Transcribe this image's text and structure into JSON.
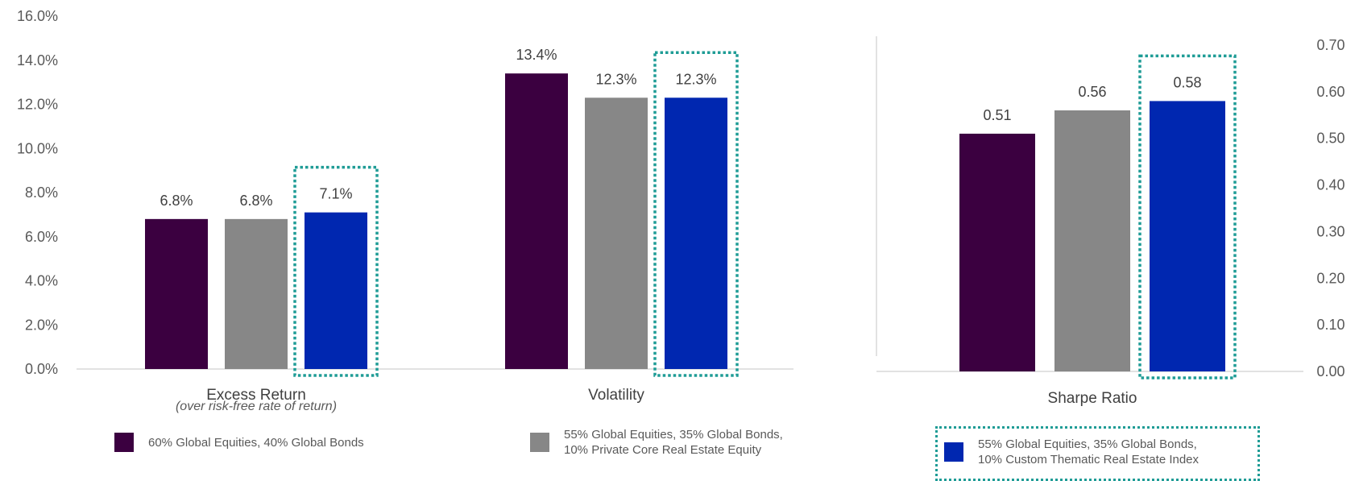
{
  "colors": {
    "series_1": "#3b0040",
    "series_2": "#878787",
    "series_3": "#0027b0",
    "highlight": "#1f9c96",
    "axis": "#d9d9d9",
    "text": "#404040"
  },
  "chart_data": [
    {
      "type": "bar",
      "title": "",
      "categories": [
        "Excess Return",
        "Volatility"
      ],
      "category_notes": [
        "(over risk-free rate of return)",
        ""
      ],
      "series": [
        {
          "name": "60% Global Equities, 40% Global Bonds",
          "values": [
            6.8,
            13.4
          ]
        },
        {
          "name": "55% Global Equities, 35% Global Bonds, 10% Private Core Real Estate Equity",
          "values": [
            6.8,
            12.3
          ]
        },
        {
          "name": "55% Global Equities, 35% Global Bonds, 10% Custom Thematic Real Estate Index",
          "values": [
            7.1,
            12.3
          ]
        }
      ],
      "data_labels": [
        [
          "6.8%",
          "13.4%"
        ],
        [
          "6.8%",
          "12.3%"
        ],
        [
          "7.1%",
          "12.3%"
        ]
      ],
      "ylim": [
        0,
        16
      ],
      "yticks": [
        "0.0%",
        "2.0%",
        "4.0%",
        "6.0%",
        "8.0%",
        "10.0%",
        "12.0%",
        "14.0%",
        "16.0%"
      ],
      "y_axis_side": "left",
      "highlighted_series": 2,
      "grid": false
    },
    {
      "type": "bar",
      "title": "",
      "categories": [
        "Sharpe Ratio"
      ],
      "series": [
        {
          "name": "60% Global Equities, 40% Global Bonds",
          "values": [
            0.51
          ]
        },
        {
          "name": "55% Global Equities, 35% Global Bonds, 10% Private Core Real Estate Equity",
          "values": [
            0.56
          ]
        },
        {
          "name": "55% Global Equities, 35% Global Bonds, 10% Custom Thematic Real Estate Index",
          "values": [
            0.58
          ]
        }
      ],
      "data_labels": [
        [
          "0.51"
        ],
        [
          "0.56"
        ],
        [
          "0.58"
        ]
      ],
      "ylim": [
        0,
        0.7
      ],
      "yticks": [
        "0.00",
        "0.10",
        "0.20",
        "0.30",
        "0.40",
        "0.50",
        "0.60",
        "0.70"
      ],
      "y_axis_side": "right",
      "highlighted_series": 2,
      "grid": false
    }
  ],
  "legend": {
    "placement": "bottom",
    "items": [
      {
        "text": "60% Global Equities, 40% Global Bonds",
        "color": "#3b0040"
      },
      {
        "text": "55% Global Equities, 35% Global Bonds,\n10% Private Core Real Estate Equity",
        "color": "#878787"
      },
      {
        "text": "55% Global Equities, 35% Global Bonds,\n10% Custom Thematic Real Estate Index",
        "color": "#0027b0",
        "highlighted": true
      }
    ]
  }
}
